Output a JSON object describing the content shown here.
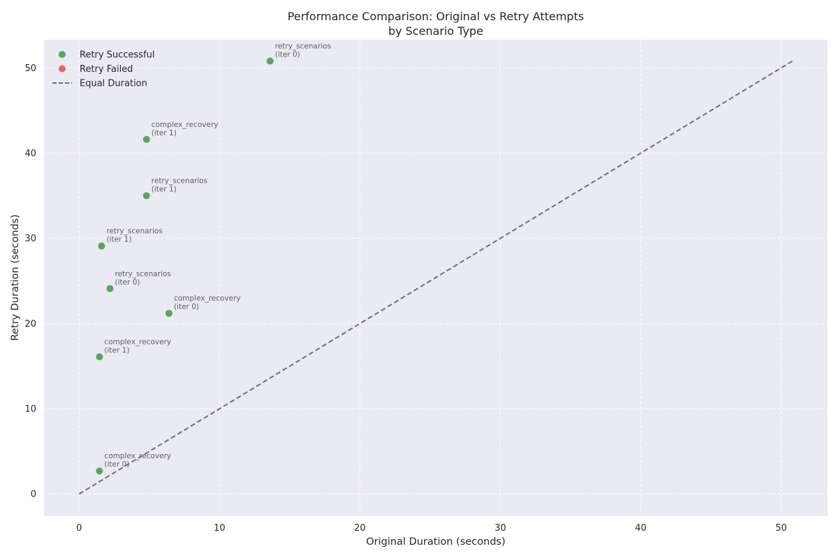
{
  "chart_data": {
    "type": "scatter",
    "title": [
      "Performance Comparison: Original vs Retry Attempts",
      "by Scenario Type"
    ],
    "xlabel": "Original Duration (seconds)",
    "ylabel": "Retry Duration (seconds)",
    "xlim": [
      -2.5,
      53.3
    ],
    "ylim": [
      -2.6,
      53.3
    ],
    "xticks": [
      0,
      10,
      20,
      30,
      40,
      50
    ],
    "yticks": [
      0,
      10,
      20,
      30,
      40,
      50
    ],
    "grid": true,
    "legend_placement": "top-left",
    "colors": {
      "success": "#5aa55e",
      "failed": "#f25f5c",
      "reference": "#707070",
      "plot_bg": "#eaeaf2"
    },
    "legend": [
      {
        "label": "Retry Successful",
        "kind": "marker",
        "color": "#5aa55e"
      },
      {
        "label": "Retry Failed",
        "kind": "marker",
        "color": "#f25f5c"
      },
      {
        "label": "Equal Duration",
        "kind": "dashed-line",
        "color": "#707070"
      }
    ],
    "reference_line": {
      "name": "Equal Duration",
      "x": [
        0,
        50.8
      ],
      "y": [
        0,
        50.8
      ]
    },
    "series": [
      {
        "name": "Retry Successful",
        "points": [
          {
            "x": 13.6,
            "y": 50.8,
            "label": [
              "retry_scenarios",
              "(iter 0)"
            ]
          },
          {
            "x": 4.8,
            "y": 41.6,
            "label": [
              "complex_recovery",
              "(iter 1)"
            ]
          },
          {
            "x": 4.8,
            "y": 35.0,
            "label": [
              "retry_scenarios",
              "(iter 1)"
            ]
          },
          {
            "x": 1.6,
            "y": 29.1,
            "label": [
              "retry_scenarios",
              "(iter 1)"
            ]
          },
          {
            "x": 2.2,
            "y": 24.1,
            "label": [
              "retry_scenarios",
              "(iter 0)"
            ]
          },
          {
            "x": 6.4,
            "y": 21.2,
            "label": [
              "complex_recovery",
              "(iter 0)"
            ]
          },
          {
            "x": 1.45,
            "y": 16.1,
            "label": [
              "complex_recovery",
              "(iter 1)"
            ]
          },
          {
            "x": 1.45,
            "y": 2.7,
            "label": [
              "complex_recovery",
              "(iter 0)"
            ]
          }
        ]
      },
      {
        "name": "Retry Failed",
        "points": []
      }
    ]
  }
}
